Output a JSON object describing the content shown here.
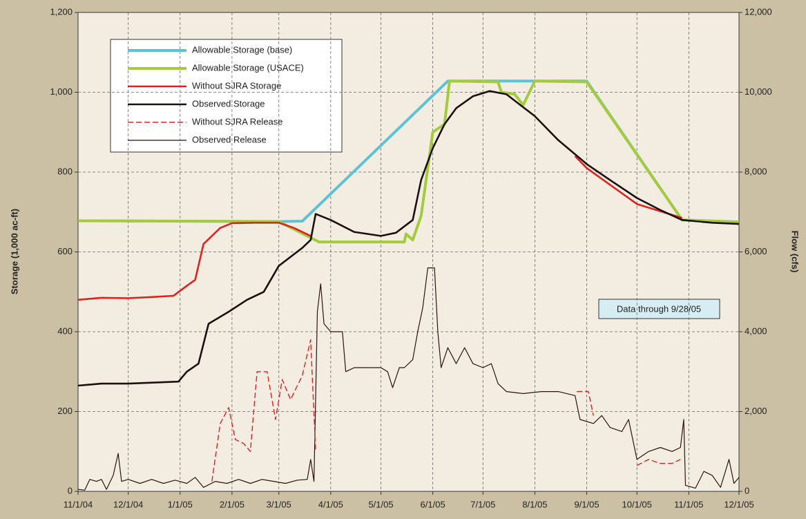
{
  "chart_data": {
    "type": "line",
    "y_label": "Storage (1,000 ac-ft)",
    "y2_label": "Flow (cfs)",
    "annotation": "Data through 9/28/05",
    "xlim": [
      "2004-11-01",
      "2005-12-01"
    ],
    "xticks": [
      {
        "value": "2004-11-01",
        "label": "11/1/04"
      },
      {
        "value": "2004-12-01",
        "label": "12/1/04"
      },
      {
        "value": "2005-01-01",
        "label": "1/1/05"
      },
      {
        "value": "2005-02-01",
        "label": "2/1/05"
      },
      {
        "value": "2005-03-01",
        "label": "3/1/05"
      },
      {
        "value": "2005-04-01",
        "label": "4/1/05"
      },
      {
        "value": "2005-05-01",
        "label": "5/1/05"
      },
      {
        "value": "2005-06-01",
        "label": "6/1/05"
      },
      {
        "value": "2005-07-01",
        "label": "7/1/05"
      },
      {
        "value": "2005-08-01",
        "label": "8/1/05"
      },
      {
        "value": "2005-09-01",
        "label": "9/1/05"
      },
      {
        "value": "2005-10-01",
        "label": "10/1/05"
      },
      {
        "value": "2005-11-01",
        "label": "11/1/05"
      },
      {
        "value": "2005-12-01",
        "label": "12/1/05"
      }
    ],
    "ylim": [
      0,
      1200
    ],
    "yticks": [
      0,
      200,
      400,
      600,
      800,
      {
        "value": 1000,
        "label": "1,000"
      },
      {
        "value": 1200,
        "label": "1,200"
      }
    ],
    "y2lim": [
      0,
      12000
    ],
    "y2ticks": [
      0,
      {
        "value": 2000,
        "label": "2,000"
      },
      {
        "value": 4000,
        "label": "4,000"
      },
      {
        "value": 6000,
        "label": "6,000"
      },
      {
        "value": 8000,
        "label": "8,000"
      },
      {
        "value": 10000,
        "label": "10,000"
      },
      {
        "value": 12000,
        "label": "12,000"
      }
    ],
    "grid": true,
    "series": [
      {
        "name": "Allowable Storage (base)",
        "color": "#5cc3d6",
        "style": "solid",
        "x": [
          "2004-11-01",
          "2005-03-01",
          "2005-03-15",
          "2005-06-10",
          "2005-09-01",
          "2005-10-28",
          "2005-12-01"
        ],
        "values": [
          678,
          676,
          677,
          1028,
          1028,
          680,
          675
        ]
      },
      {
        "name": "Allowable Storage (USACE)",
        "color": "#a3cb3b",
        "style": "solid",
        "x": [
          "2004-11-01",
          "2005-03-01",
          "2005-03-25",
          "2005-05-15",
          "2005-05-16",
          "2005-05-20",
          "2005-05-25",
          "2005-06-01",
          "2005-06-08",
          "2005-06-11",
          "2005-07-10",
          "2005-07-12",
          "2005-07-20",
          "2005-07-25",
          "2005-08-01",
          "2005-09-01",
          "2005-10-28",
          "2005-12-01"
        ],
        "values": [
          678,
          676,
          625,
          625,
          645,
          630,
          690,
          900,
          920,
          1028,
          1026,
          1000,
          995,
          968,
          1028,
          1026,
          680,
          675
        ]
      },
      {
        "name": "Without SJRA Storage",
        "color": "#e3201e",
        "style": "solid",
        "x": [
          "2004-11-01",
          "2004-11-15",
          "2004-12-01",
          "2004-12-15",
          "2004-12-28",
          "2005-01-05",
          "2005-01-10",
          "2005-01-15",
          "2005-01-25",
          "2005-02-01",
          "2005-02-15",
          "2005-03-01",
          "2005-03-10",
          "2005-03-20",
          "2005-03-21",
          "2005-08-25",
          "2005-09-01",
          "2005-10-01",
          "2005-10-28"
        ],
        "values": [
          480,
          485,
          484,
          487,
          490,
          515,
          530,
          620,
          660,
          672,
          673,
          673,
          660,
          640,
          null,
          840,
          810,
          720,
          685
        ]
      },
      {
        "name": "Observed Storage",
        "color": "#1a1010",
        "style": "solid",
        "x": [
          "2004-11-01",
          "2004-11-15",
          "2004-12-01",
          "2004-12-31",
          "2005-01-05",
          "2005-01-12",
          "2005-01-18",
          "2005-01-30",
          "2005-02-10",
          "2005-02-20",
          "2005-03-01",
          "2005-03-15",
          "2005-03-20",
          "2005-03-23",
          "2005-04-01",
          "2005-04-15",
          "2005-05-01",
          "2005-05-10",
          "2005-05-20",
          "2005-05-25",
          "2005-06-01",
          "2005-06-08",
          "2005-06-15",
          "2005-06-25",
          "2005-07-05",
          "2005-07-15",
          "2005-08-01",
          "2005-08-15",
          "2005-09-01",
          "2005-09-15",
          "2005-10-01",
          "2005-10-15",
          "2005-10-28",
          "2005-11-15",
          "2005-12-01"
        ],
        "values": [
          265,
          270,
          270,
          275,
          300,
          320,
          420,
          450,
          480,
          500,
          565,
          610,
          630,
          695,
          680,
          650,
          640,
          648,
          680,
          780,
          860,
          920,
          960,
          990,
          1003,
          995,
          940,
          880,
          820,
          780,
          735,
          705,
          680,
          673,
          670
        ]
      },
      {
        "name": "Without SJRA Release",
        "color": "#e3201e",
        "style": "dashed",
        "axis": "y2",
        "x": [
          "2005-01-20",
          "2005-01-25",
          "2005-01-30",
          "2005-02-03",
          "2005-02-08",
          "2005-02-12",
          "2005-02-16",
          "2005-02-22",
          "2005-02-27",
          "2005-03-03",
          "2005-03-08",
          "2005-03-15",
          "2005-03-20",
          "2005-03-23",
          "2005-03-24",
          "2005-08-26",
          "2005-09-02",
          "2005-09-05",
          "2005-09-20",
          "2005-10-01",
          "2005-10-08",
          "2005-10-15",
          "2005-10-22",
          "2005-10-27"
        ],
        "values": [
          250,
          1700,
          2100,
          1300,
          1200,
          1000,
          3000,
          3000,
          1800,
          2800,
          2300,
          2900,
          3800,
          1000,
          null,
          2500,
          2500,
          1900,
          null,
          650,
          800,
          700,
          700,
          800
        ]
      },
      {
        "name": "Observed Release",
        "color": "#2a1212",
        "style": "thin",
        "axis": "y2",
        "x": [
          "2004-11-01",
          "2004-11-05",
          "2004-11-08",
          "2004-11-12",
          "2004-11-15",
          "2004-11-18",
          "2004-11-22",
          "2004-11-25",
          "2004-11-27",
          "2004-12-01",
          "2004-12-08",
          "2004-12-15",
          "2004-12-22",
          "2004-12-29",
          "2005-01-05",
          "2005-01-10",
          "2005-01-15",
          "2005-01-22",
          "2005-01-29",
          "2005-02-05",
          "2005-02-12",
          "2005-02-19",
          "2005-02-26",
          "2005-03-05",
          "2005-03-12",
          "2005-03-18",
          "2005-03-20",
          "2005-03-22",
          "2005-03-24",
          "2005-03-26",
          "2005-03-28",
          "2005-04-01",
          "2005-04-08",
          "2005-04-10",
          "2005-04-15",
          "2005-04-22",
          "2005-05-01",
          "2005-05-05",
          "2005-05-08",
          "2005-05-12",
          "2005-05-15",
          "2005-05-20",
          "2005-05-23",
          "2005-05-26",
          "2005-05-29",
          "2005-06-02",
          "2005-06-04",
          "2005-06-06",
          "2005-06-10",
          "2005-06-15",
          "2005-06-20",
          "2005-06-25",
          "2005-07-01",
          "2005-07-06",
          "2005-07-10",
          "2005-07-15",
          "2005-07-25",
          "2005-08-05",
          "2005-08-15",
          "2005-08-25",
          "2005-08-28",
          "2005-09-05",
          "2005-09-10",
          "2005-09-15",
          "2005-09-22",
          "2005-09-26",
          "2005-10-01",
          "2005-10-08",
          "2005-10-15",
          "2005-10-22",
          "2005-10-27",
          "2005-10-29",
          "2005-10-30",
          "2005-11-05",
          "2005-11-10",
          "2005-11-15",
          "2005-11-20",
          "2005-11-25",
          "2005-11-28",
          "2005-12-01"
        ],
        "values": [
          50,
          30,
          300,
          250,
          300,
          50,
          400,
          950,
          250,
          300,
          200,
          300,
          200,
          280,
          200,
          350,
          100,
          250,
          200,
          300,
          200,
          300,
          250,
          200,
          280,
          300,
          800,
          250,
          4500,
          5200,
          4200,
          4000,
          4000,
          3000,
          3100,
          3100,
          3100,
          3000,
          2600,
          3100,
          3100,
          3300,
          4000,
          4600,
          5600,
          5600,
          4000,
          3100,
          3600,
          3200,
          3600,
          3200,
          3100,
          3200,
          2700,
          2500,
          2450,
          2500,
          2500,
          2400,
          1800,
          1700,
          1900,
          1600,
          1500,
          1800,
          800,
          1000,
          1100,
          1000,
          1100,
          1800,
          150,
          80,
          500,
          400,
          100,
          800,
          200,
          350
        ]
      }
    ]
  }
}
